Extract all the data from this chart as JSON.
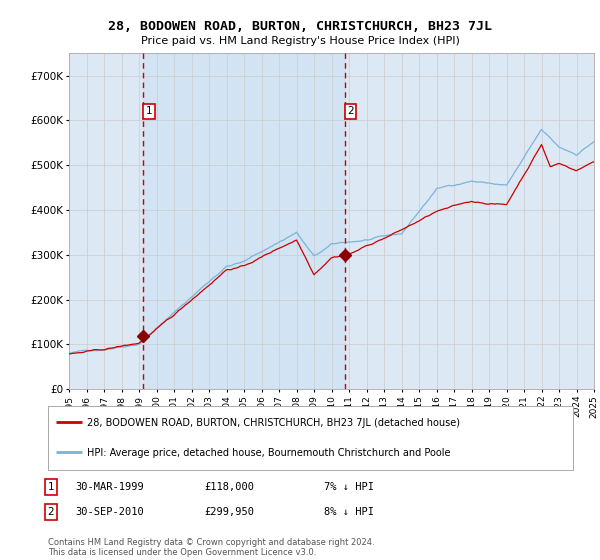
{
  "title": "28, BODOWEN ROAD, BURTON, CHRISTCHURCH, BH23 7JL",
  "subtitle": "Price paid vs. HM Land Registry's House Price Index (HPI)",
  "ylabel_ticks": [
    "£0",
    "£100K",
    "£200K",
    "£300K",
    "£400K",
    "£500K",
    "£600K",
    "£700K"
  ],
  "ylim": [
    0,
    750000
  ],
  "ytick_vals": [
    0,
    100000,
    200000,
    300000,
    400000,
    500000,
    600000,
    700000
  ],
  "xstart_year": 1995,
  "xend_year": 2025,
  "purchase1_year": 1999.25,
  "purchase1_price": 118000,
  "purchase2_year": 2010.75,
  "purchase2_price": 299950,
  "bg_color": "#dce9f5",
  "fig_bg": "#ffffff",
  "red_line_color": "#cc0000",
  "blue_line_color": "#7ab4d8",
  "grid_color": "#cccccc",
  "dashed_line_color": "#cc0000",
  "legend_text1": "28, BODOWEN ROAD, BURTON, CHRISTCHURCH, BH23 7JL (detached house)",
  "legend_text2": "HPI: Average price, detached house, Bournemouth Christchurch and Poole",
  "footnote": "Contains HM Land Registry data © Crown copyright and database right 2024.\nThis data is licensed under the Open Government Licence v3.0.",
  "label1_date": "30-MAR-1999",
  "label1_price": "£118,000",
  "label1_hpi": "7% ↓ HPI",
  "label2_date": "30-SEP-2010",
  "label2_price": "£299,950",
  "label2_hpi": "8% ↓ HPI"
}
